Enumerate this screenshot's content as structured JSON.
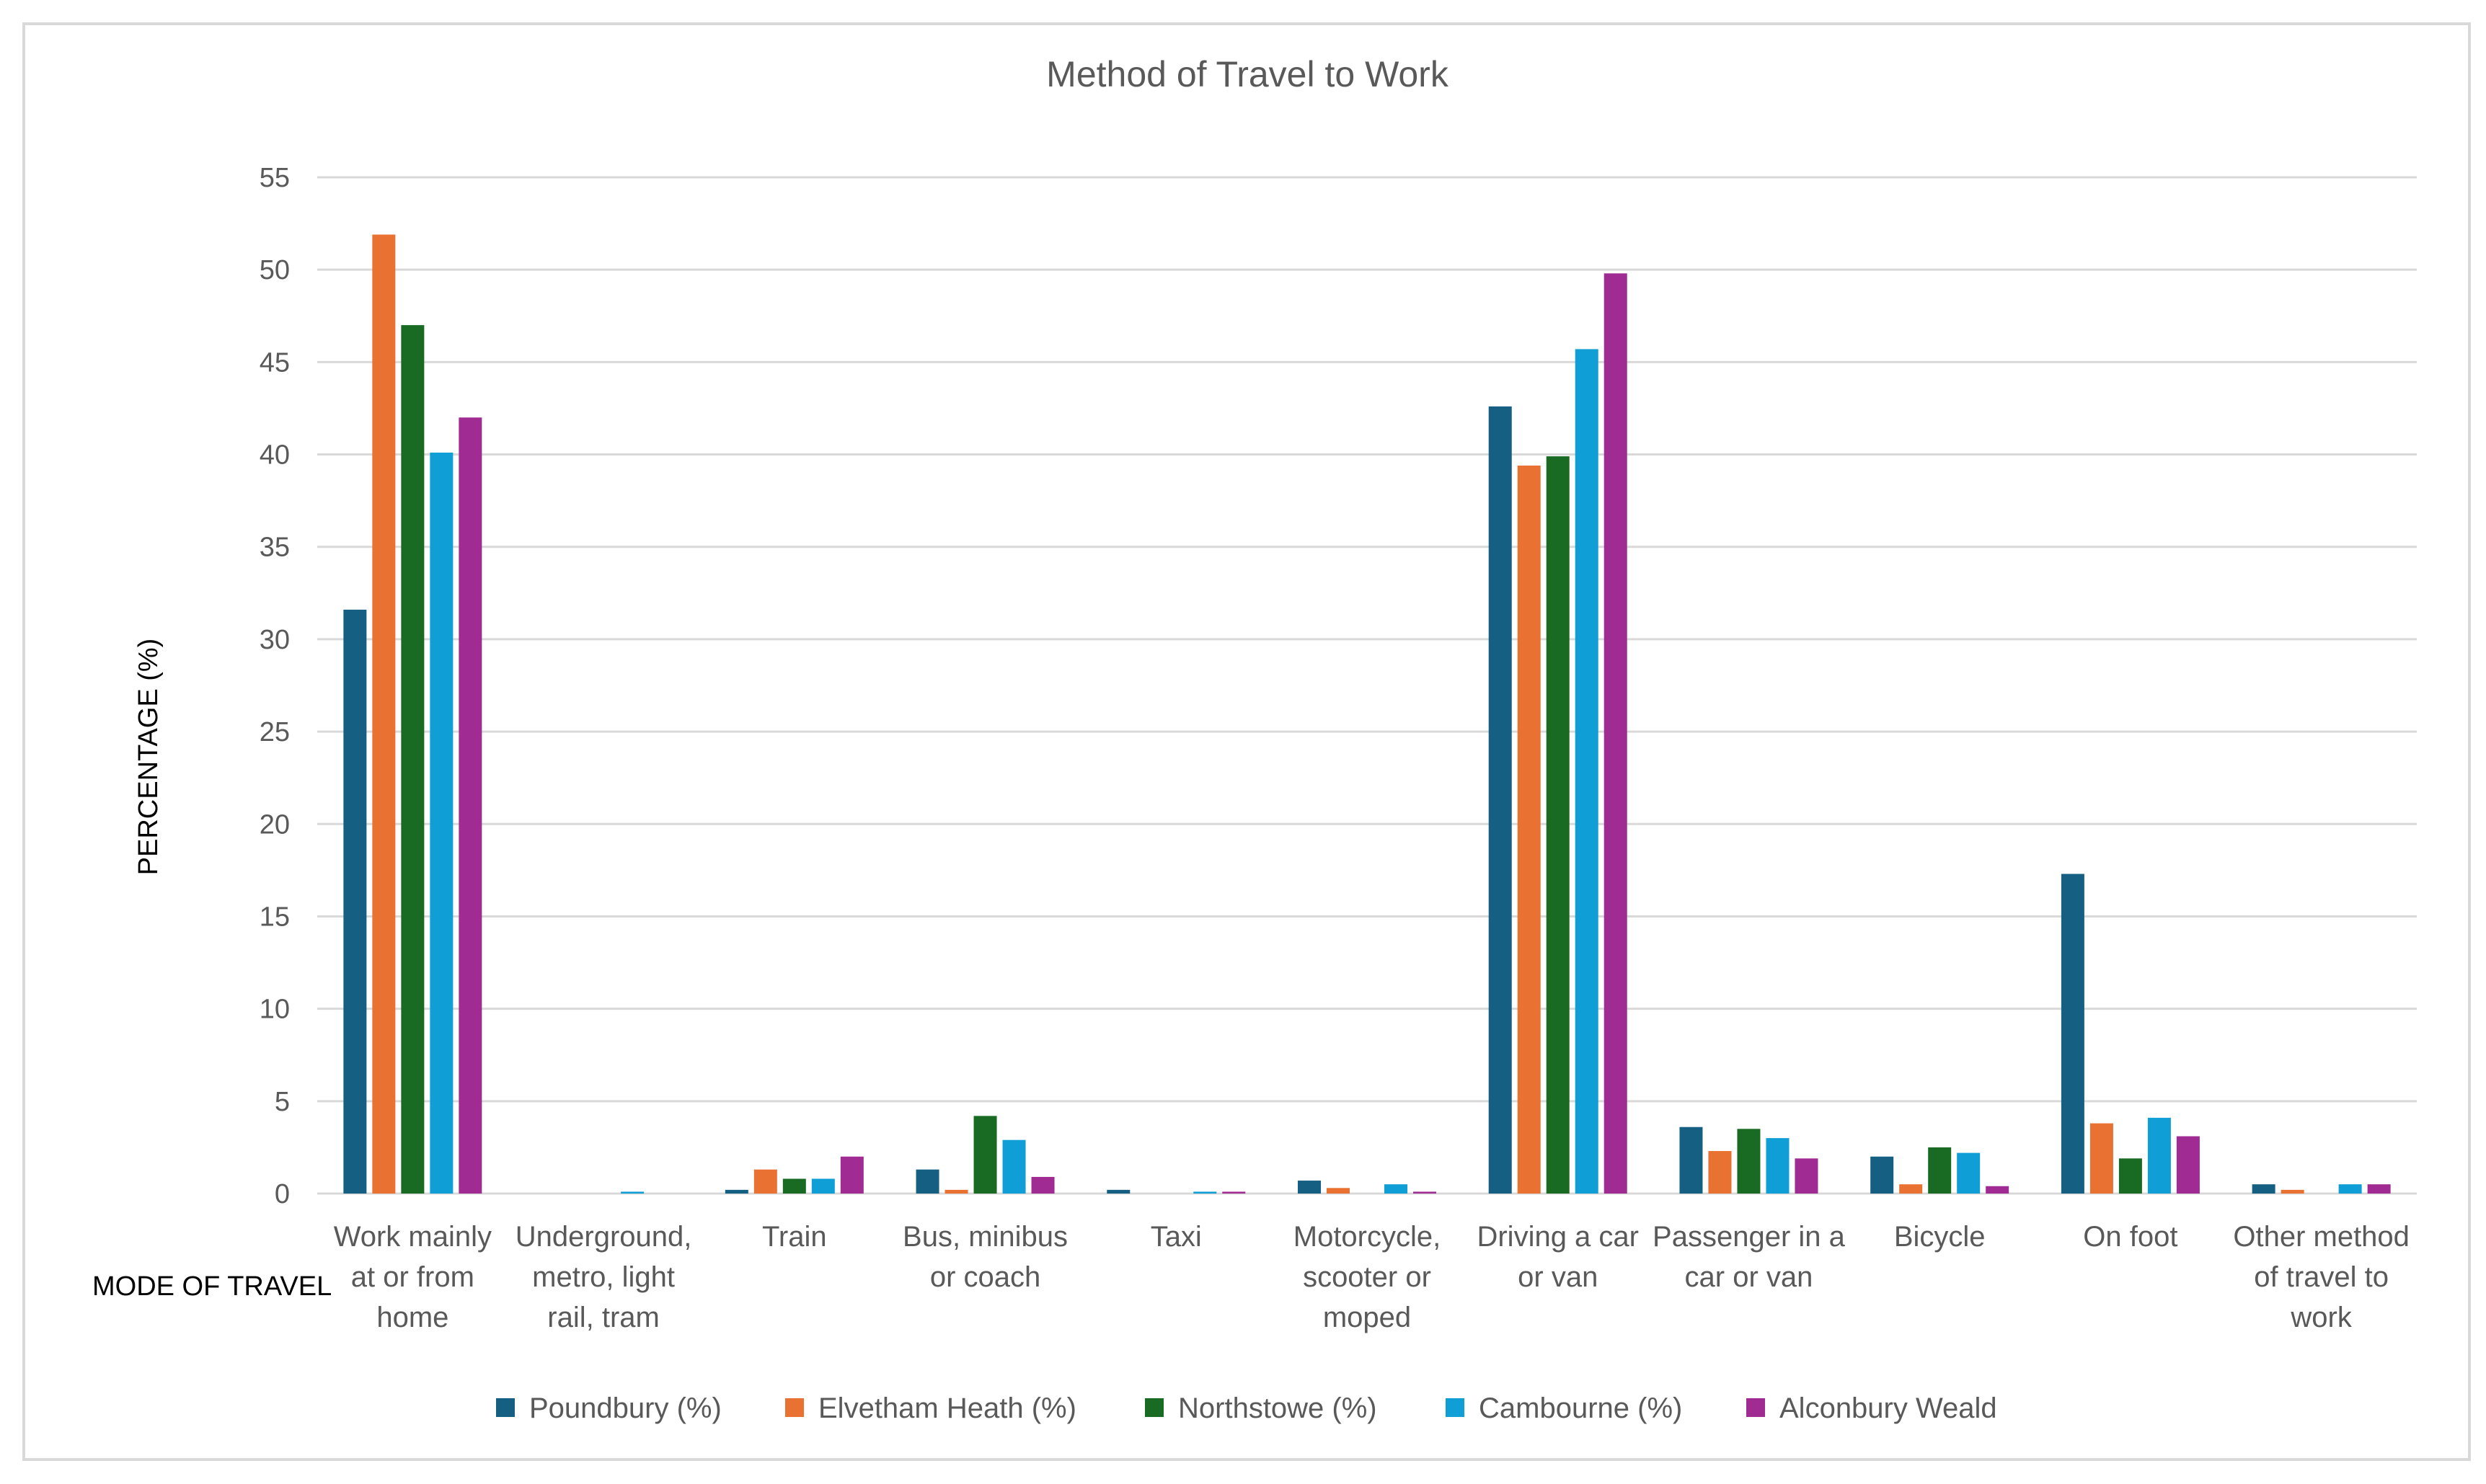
{
  "chart_data": {
    "type": "bar",
    "title": "Method of Travel to Work",
    "xlabel": "MODE OF TRAVEL",
    "ylabel": "PERCENTAGE (%)",
    "ylim": [
      0,
      55
    ],
    "yticks": [
      0,
      5,
      10,
      15,
      20,
      25,
      30,
      35,
      40,
      45,
      50,
      55
    ],
    "grid": true,
    "legend_position": "bottom",
    "categories": [
      [
        "Work mainly",
        "at or from",
        "home"
      ],
      [
        "Underground,",
        "metro, light",
        "rail, tram"
      ],
      [
        "Train"
      ],
      [
        "Bus, minibus",
        "or coach"
      ],
      [
        "Taxi"
      ],
      [
        "Motorcycle,",
        "scooter or",
        "moped"
      ],
      [
        "Driving a car",
        "or van"
      ],
      [
        "Passenger in a",
        "car or van"
      ],
      [
        "Bicycle"
      ],
      [
        "On foot"
      ],
      [
        "Other method",
        "of travel to",
        "work"
      ]
    ],
    "series": [
      {
        "name": "Poundbury (%)",
        "color": "#156082",
        "values": [
          31.6,
          0,
          0.2,
          1.3,
          0.2,
          0.7,
          42.6,
          3.6,
          2.0,
          17.3,
          0.5
        ]
      },
      {
        "name": "Elvetham Heath (%)",
        "color": "#E97132",
        "values": [
          51.9,
          0,
          1.3,
          0.2,
          0,
          0.3,
          39.4,
          2.3,
          0.5,
          3.8,
          0.2
        ]
      },
      {
        "name": "Northstowe (%)",
        "color": "#196B24",
        "values": [
          47.0,
          0,
          0.8,
          4.2,
          0,
          0,
          39.9,
          3.5,
          2.5,
          1.9,
          0
        ]
      },
      {
        "name": "Cambourne (%)",
        "color": "#0F9ED5",
        "values": [
          40.1,
          0.1,
          0.8,
          2.9,
          0.1,
          0.5,
          45.7,
          3.0,
          2.2,
          4.1,
          0.5
        ]
      },
      {
        "name": "Alconbury Weald",
        "color": "#A02B93",
        "values": [
          42.0,
          0,
          2.0,
          0.9,
          0.1,
          0.1,
          49.8,
          1.9,
          0.4,
          3.1,
          0.5
        ]
      }
    ]
  }
}
